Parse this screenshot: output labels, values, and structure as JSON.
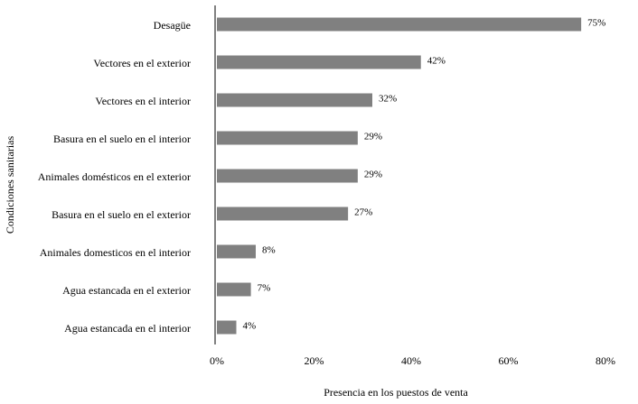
{
  "chart_data": {
    "type": "hbar",
    "categories": [
      "Desagüe",
      "Vectores en el exterior",
      "Vectores en el interior",
      "Basura en el suelo en el interior",
      "Animales domésticos en el exterior",
      "Basura en el suelo en el exterior",
      "Animales domesticos en el interior",
      "Agua estancada en el exterior",
      "Agua estancada en el interior"
    ],
    "values": [
      75,
      42,
      32,
      29,
      29,
      27,
      8,
      7,
      4
    ],
    "value_labels": [
      "75%",
      "42%",
      "32%",
      "29%",
      "29%",
      "27%",
      "8%",
      "7%",
      "4%"
    ],
    "color": "#808080",
    "xlabel": "Presencia en los puestos de venta",
    "ylabel": "Condiciones sanitarias",
    "xlim": [
      0,
      80
    ],
    "xticks": [
      {
        "value": 0,
        "label": "0%"
      },
      {
        "value": 20,
        "label": "20%"
      },
      {
        "value": 40,
        "label": "40%"
      },
      {
        "value": 60,
        "label": "60%"
      },
      {
        "value": 80,
        "label": "80%"
      }
    ],
    "grid": false
  }
}
